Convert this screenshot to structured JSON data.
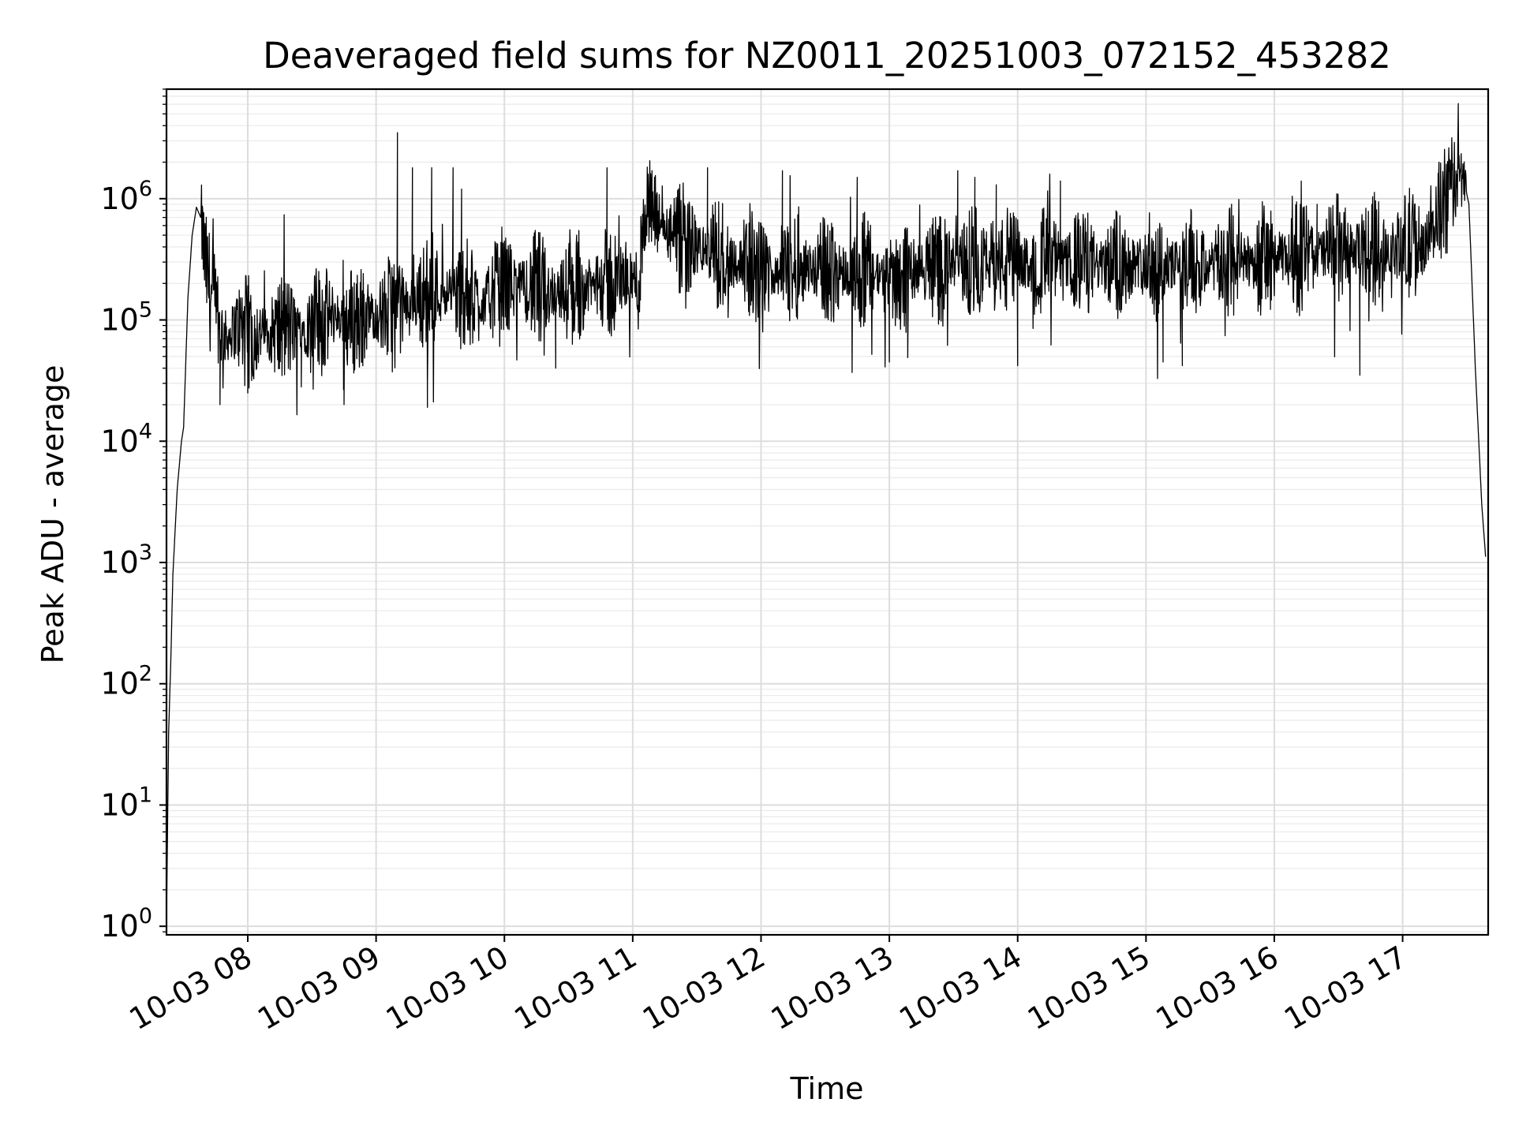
{
  "chart_data": {
    "type": "line",
    "title": "Deaveraged field sums for NZ0011_20251003_072152_453282",
    "xlabel": "Time",
    "ylabel": "Peak ADU - average",
    "y_scale": "log",
    "ylim": [
      0.85,
      8000000
    ],
    "xlim": [
      "2025-10-03 07:22",
      "2025-10-03 17:40"
    ],
    "grid": true,
    "minor_grid": true,
    "line_color": "#000000",
    "x_ticks": [
      {
        "value": "2025-10-03 08:00",
        "label": "10-03 08"
      },
      {
        "value": "2025-10-03 09:00",
        "label": "10-03 09"
      },
      {
        "value": "2025-10-03 10:00",
        "label": "10-03 10"
      },
      {
        "value": "2025-10-03 11:00",
        "label": "10-03 11"
      },
      {
        "value": "2025-10-03 12:00",
        "label": "10-03 12"
      },
      {
        "value": "2025-10-03 13:00",
        "label": "10-03 13"
      },
      {
        "value": "2025-10-03 14:00",
        "label": "10-03 14"
      },
      {
        "value": "2025-10-03 15:00",
        "label": "10-03 15"
      },
      {
        "value": "2025-10-03 16:00",
        "label": "10-03 16"
      },
      {
        "value": "2025-10-03 17:00",
        "label": "10-03 17"
      }
    ],
    "y_ticks": [
      {
        "value": 1,
        "base": "10",
        "exp": "0"
      },
      {
        "value": 10,
        "base": "10",
        "exp": "1"
      },
      {
        "value": 100,
        "base": "10",
        "exp": "2"
      },
      {
        "value": 1000,
        "base": "10",
        "exp": "3"
      },
      {
        "value": 10000,
        "base": "10",
        "exp": "4"
      },
      {
        "value": 100000,
        "base": "10",
        "exp": "5"
      },
      {
        "value": 1000000,
        "base": "10",
        "exp": "6"
      }
    ],
    "series": [
      {
        "points": [
          [
            "2025-10-03 07:22",
            1
          ],
          [
            "2025-10-03 07:23",
            40
          ],
          [
            "2025-10-03 07:24",
            150
          ],
          [
            "2025-10-03 07:25",
            800
          ],
          [
            "2025-10-03 07:27",
            4000
          ],
          [
            "2025-10-03 07:29",
            10000
          ],
          [
            "2025-10-03 07:30",
            13000
          ],
          [
            "2025-10-03 07:32",
            150000
          ],
          [
            "2025-10-03 07:34",
            500000
          ],
          [
            "2025-10-03 07:36",
            850000
          ],
          [
            "2025-10-03 07:38",
            700000
          ],
          [
            "2025-10-03 07:40",
            300000
          ],
          [
            "2025-10-03 07:43",
            150000
          ],
          [
            "2025-10-03 07:46",
            90000
          ],
          [
            "2025-10-03 07:50",
            70000
          ],
          [
            "2025-10-03 07:55",
            90000
          ],
          [
            "2025-10-03 08:00",
            75000
          ],
          [
            "2025-10-03 08:10",
            80000
          ],
          [
            "2025-10-03 08:20",
            85000
          ],
          [
            "2025-10-03 08:30",
            90000
          ],
          [
            "2025-10-03 08:40",
            110000
          ],
          [
            "2025-10-03 08:50",
            100000
          ],
          [
            "2025-10-03 09:00",
            110000
          ],
          [
            "2025-10-03 09:10",
            120000
          ],
          [
            "2025-10-03 09:20",
            150000
          ],
          [
            "2025-10-03 09:30",
            180000
          ],
          [
            "2025-10-03 09:40",
            160000
          ],
          [
            "2025-10-03 09:50",
            140000
          ],
          [
            "2025-10-03 10:00",
            200000
          ],
          [
            "2025-10-03 10:15",
            180000
          ],
          [
            "2025-10-03 10:30",
            170000
          ],
          [
            "2025-10-03 10:45",
            200000
          ],
          [
            "2025-10-03 11:00",
            220000
          ],
          [
            "2025-10-03 11:03",
            180000
          ],
          [
            "2025-10-03 11:05",
            800000
          ],
          [
            "2025-10-03 11:10",
            700000
          ],
          [
            "2025-10-03 11:20",
            450000
          ],
          [
            "2025-10-03 11:40",
            350000
          ],
          [
            "2025-10-03 12:00",
            250000
          ],
          [
            "2025-10-03 12:20",
            280000
          ],
          [
            "2025-10-03 12:40",
            250000
          ],
          [
            "2025-10-03 13:00",
            230000
          ],
          [
            "2025-10-03 13:20",
            280000
          ],
          [
            "2025-10-03 13:40",
            300000
          ],
          [
            "2025-10-03 14:00",
            290000
          ],
          [
            "2025-10-03 14:20",
            300000
          ],
          [
            "2025-10-03 14:40",
            280000
          ],
          [
            "2025-10-03 15:00",
            300000
          ],
          [
            "2025-10-03 15:20",
            270000
          ],
          [
            "2025-10-03 15:40",
            300000
          ],
          [
            "2025-10-03 16:00",
            320000
          ],
          [
            "2025-10-03 16:20",
            350000
          ],
          [
            "2025-10-03 16:40",
            380000
          ],
          [
            "2025-10-03 17:00",
            400000
          ],
          [
            "2025-10-03 17:10",
            420000
          ],
          [
            "2025-10-03 17:20",
            900000
          ],
          [
            "2025-10-03 17:25",
            1500000
          ],
          [
            "2025-10-03 17:28",
            1600000
          ],
          [
            "2025-10-03 17:31",
            900000
          ],
          [
            "2025-10-03 17:34",
            40000
          ],
          [
            "2025-10-03 17:37",
            3000
          ],
          [
            "2025-10-03 17:39",
            1000
          ]
        ],
        "spikes": [
          [
            "2025-10-03 07:47",
            20000
          ],
          [
            "2025-10-03 08:00",
            25000
          ],
          [
            "2025-10-03 08:25",
            28000
          ],
          [
            "2025-10-03 08:45",
            20000
          ],
          [
            "2025-10-03 09:10",
            3500000
          ],
          [
            "2025-10-03 09:17",
            1800000
          ],
          [
            "2025-10-03 09:24",
            19000
          ],
          [
            "2025-10-03 09:26",
            1800000
          ],
          [
            "2025-10-03 09:36",
            1800000
          ],
          [
            "2025-10-03 09:40",
            1200000
          ],
          [
            "2025-10-03 10:24",
            40000
          ],
          [
            "2025-10-03 10:48",
            1800000
          ],
          [
            "2025-10-03 11:09",
            1700000
          ],
          [
            "2025-10-03 11:35",
            1800000
          ],
          [
            "2025-10-03 12:10",
            1700000
          ],
          [
            "2025-10-03 12:45",
            1500000
          ],
          [
            "2025-10-03 13:00",
            45000
          ],
          [
            "2025-10-03 13:32",
            1700000
          ],
          [
            "2025-10-03 13:40",
            1500000
          ],
          [
            "2025-10-03 13:50",
            1300000
          ],
          [
            "2025-10-03 14:00",
            42000
          ],
          [
            "2025-10-03 14:20",
            1400000
          ],
          [
            "2025-10-03 15:08",
            45000
          ],
          [
            "2025-10-03 15:17",
            42000
          ],
          [
            "2025-10-03 15:40",
            900000
          ],
          [
            "2025-10-03 16:20",
            900000
          ],
          [
            "2025-10-03 16:40",
            35000
          ],
          [
            "2025-10-03 17:17",
            2000000
          ],
          [
            "2025-10-03 17:22",
            2100000
          ]
        ]
      }
    ]
  }
}
